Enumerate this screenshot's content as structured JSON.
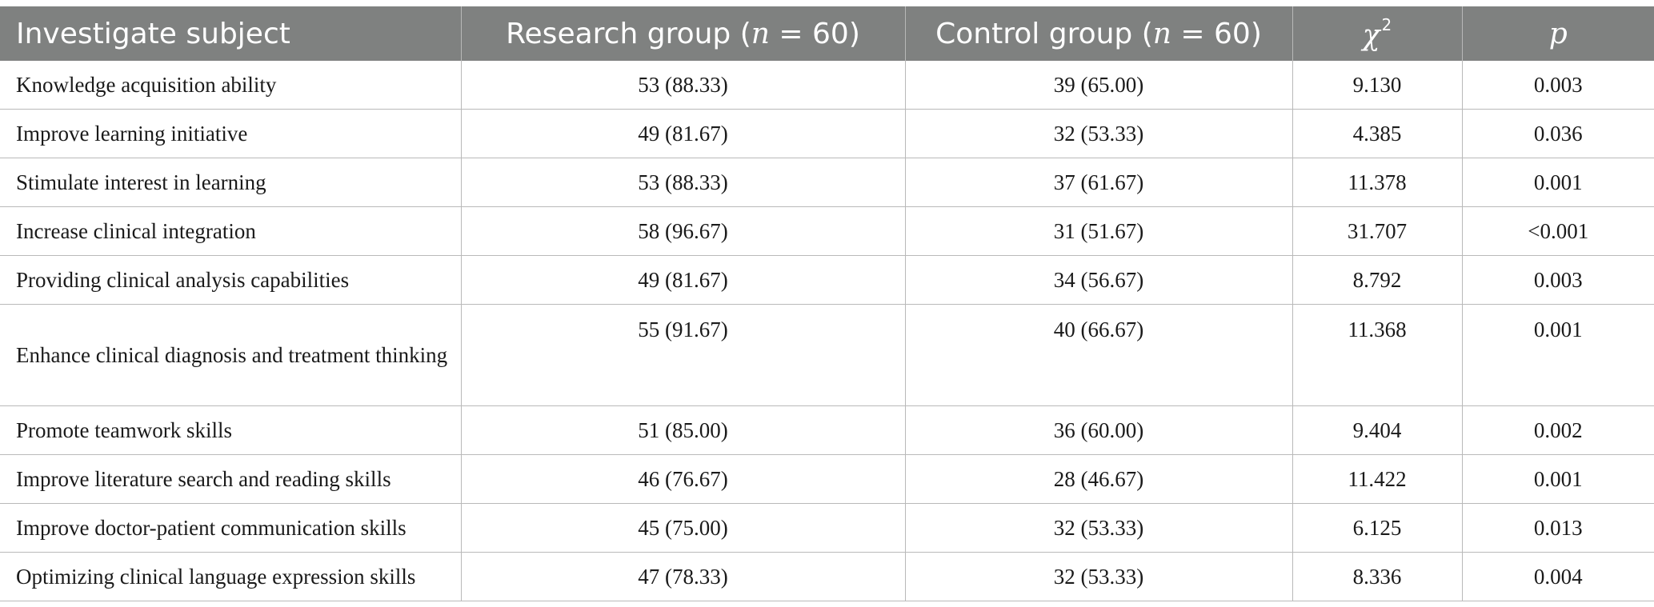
{
  "header": {
    "subject": "Investigate subject",
    "research_prefix": "Research group (",
    "research_n": "n",
    "research_suffix": " = 60)",
    "control_prefix": "Control group (",
    "control_n": "n",
    "control_suffix": " = 60)",
    "chi_symbol": "χ",
    "chi_sup": "2",
    "p": "p"
  },
  "rows": [
    {
      "subject": "Knowledge acquisition ability",
      "research": "53 (88.33)",
      "control": "39 (65.00)",
      "chi": "9.130",
      "p": "0.003"
    },
    {
      "subject": "Improve learning initiative",
      "research": "49 (81.67)",
      "control": "32 (53.33)",
      "chi": "4.385",
      "p": "0.036"
    },
    {
      "subject": "Stimulate interest in learning",
      "research": "53 (88.33)",
      "control": "37 (61.67)",
      "chi": "11.378",
      "p": "0.001"
    },
    {
      "subject": "Increase clinical integration",
      "research": "58 (96.67)",
      "control": "31 (51.67)",
      "chi": "31.707",
      "p": "<0.001"
    },
    {
      "subject": "Providing clinical analysis capabilities",
      "research": "49 (81.67)",
      "control": "34 (56.67)",
      "chi": "8.792",
      "p": "0.003"
    },
    {
      "subject": "Enhance clinical diagnosis and treatment thinking",
      "research": "55 (91.67)",
      "control": "40 (66.67)",
      "chi": "11.368",
      "p": "0.001"
    },
    {
      "subject": "Promote teamwork skills",
      "research": "51 (85.00)",
      "control": "36 (60.00)",
      "chi": "9.404",
      "p": "0.002"
    },
    {
      "subject": "Improve literature search and reading skills",
      "research": "46 (76.67)",
      "control": "28 (46.67)",
      "chi": "11.422",
      "p": "0.001"
    },
    {
      "subject": "Improve doctor-patient communication skills",
      "research": "45 (75.00)",
      "control": "32 (53.33)",
      "chi": "6.125",
      "p": "0.013"
    },
    {
      "subject": "Optimizing clinical language expression skills",
      "research": "47 (78.33)",
      "control": "32 (53.33)",
      "chi": "8.336",
      "p": "0.004"
    }
  ]
}
